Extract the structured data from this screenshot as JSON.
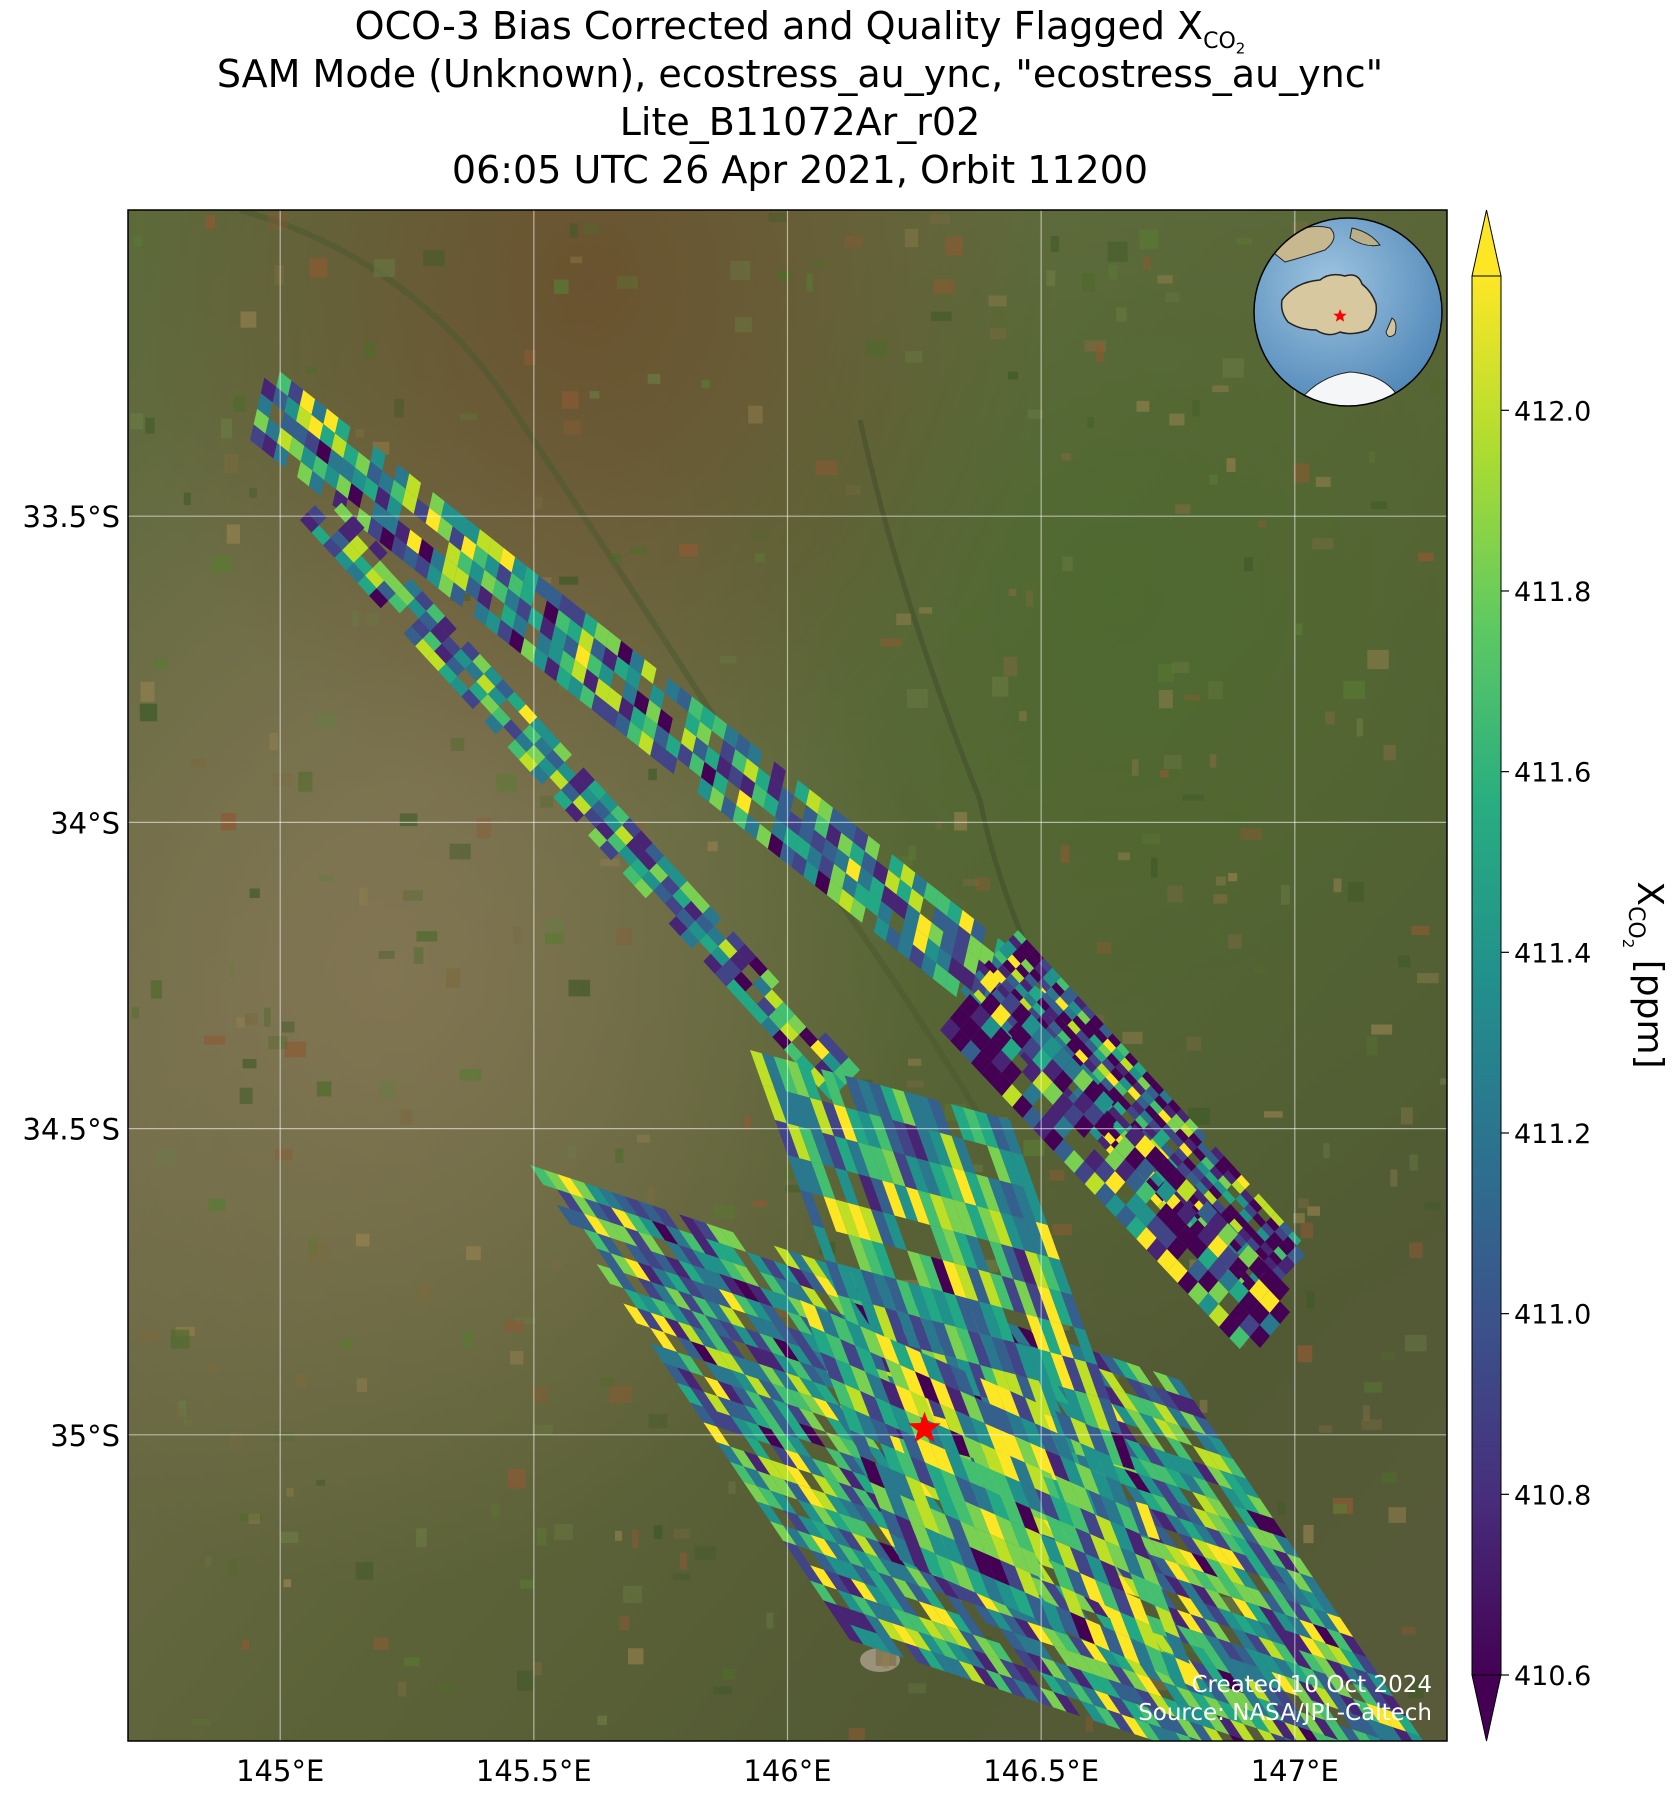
{
  "title": {
    "line1_main": "OCO-3 Bias Corrected and Quality Flagged X",
    "line1_sub": "CO",
    "line1_subsub": "2",
    "line2": "SAM Mode (Unknown), ecostress_au_ync, \"ecostress_au_ync\"",
    "line3": "Lite_B11072Ar_r02",
    "line4": "06:05 UTC 26 Apr 2021, Orbit 11200"
  },
  "colorbar": {
    "label_main": "X",
    "label_sub": "CO",
    "label_subsub": "2",
    "label_units": " [ppm]",
    "ticks": [
      "412.0",
      "411.8",
      "411.6",
      "411.4",
      "411.2",
      "411.0",
      "410.8",
      "410.6"
    ],
    "range": [
      410.6,
      412.0
    ],
    "colormap": "viridis",
    "extend": "both"
  },
  "map": {
    "x_ticks": [
      "145°E",
      "145.5°E",
      "146°E",
      "146.5°E",
      "147°E"
    ],
    "y_ticks": [
      "33.5°S",
      "34°S",
      "34.5°S",
      "35°S"
    ],
    "lon_range": [
      144.7,
      147.3
    ],
    "lat_range": [
      -35.5,
      -33.0
    ],
    "target_marker": {
      "lon": 146.27,
      "lat": -34.99,
      "color": "#ff0000"
    },
    "inset_globe": "globe-inset-australia",
    "background": "satellite-imagery"
  },
  "credits": {
    "created": "Created 10 Oct 2024",
    "source": "Source: NASA/JPL-Caltech"
  }
}
